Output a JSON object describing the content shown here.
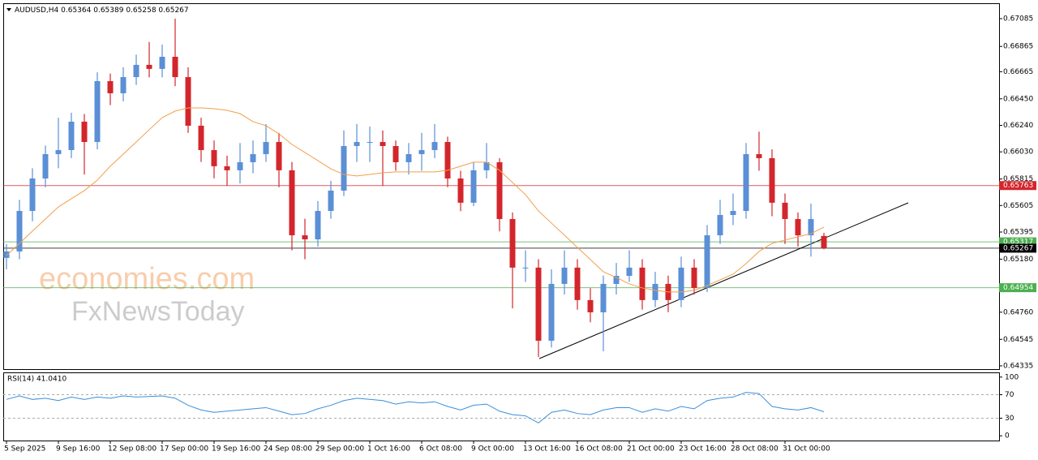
{
  "chart_data": {
    "type": "candlestick",
    "symbol": "AUDUSD,H4",
    "up_color": "#5b8fd6",
    "down_color": "#d3262c",
    "categories": [
      "5 Sep 2025",
      null,
      null,
      null,
      "9 Sep 16:00",
      null,
      null,
      null,
      "12 Sep 08:00",
      null,
      null,
      null,
      "17 Sep 00:00",
      null,
      null,
      null,
      "19 Sep 16:00",
      null,
      null,
      null,
      "24 Sep 08:00",
      null,
      null,
      null,
      "29 Sep 00:00",
      null,
      null,
      null,
      "1 Oct 16:00",
      null,
      null,
      null,
      "6 Oct 08:00",
      null,
      null,
      null,
      "9 Oct 00:00",
      null,
      null,
      null,
      "13 Oct 16:00",
      null,
      null,
      null,
      "16 Oct 08:00",
      null,
      null,
      null,
      "21 Oct 00:00",
      null,
      null,
      null,
      "23 Oct 16:00",
      null,
      null,
      null,
      "28 Oct 08:00",
      null,
      null,
      null,
      "31 Oct 00:00",
      null,
      null,
      null
    ],
    "open": [
      0.6519,
      0.65241,
      0.65562,
      0.65819,
      0.66012,
      0.66044,
      0.66269,
      0.66108,
      0.6659,
      0.66494,
      0.66622,
      0.66719,
      0.66687,
      0.66783,
      0.66622,
      0.66237,
      0.66044,
      0.65916,
      0.65884,
      0.65948,
      0.66012,
      0.66108,
      0.65884,
      0.65369,
      0.65337,
      0.65562,
      0.65723,
      0.66076,
      0.66108,
      0.66108,
      0.66076,
      0.65948,
      0.66012,
      0.66044,
      0.66108,
      0.65819,
      0.65627,
      0.65884,
      0.65948,
      0.65498,
      0.65113,
      0.65113,
      0.64534,
      0.64984,
      0.65113,
      0.64856,
      0.64759,
      0.64984,
      0.65048,
      0.65113,
      0.64856,
      0.64984,
      0.64856,
      0.65113,
      0.64952,
      0.65369,
      0.6553,
      0.65562,
      0.66012,
      0.6598,
      0.65627,
      0.65498,
      0.65369,
      0.65364
    ],
    "high": [
      0.653,
      0.6565,
      0.659,
      0.6608,
      0.663,
      0.6634,
      0.6633,
      0.6666,
      0.6665,
      0.667,
      0.668,
      0.669,
      0.6688,
      0.67085,
      0.667,
      0.663,
      0.6612,
      0.66,
      0.661,
      0.6612,
      0.6625,
      0.6618,
      0.6595,
      0.655,
      0.6564,
      0.658,
      0.662,
      0.6625,
      0.6623,
      0.662,
      0.6612,
      0.661,
      0.6618,
      0.6625,
      0.6615,
      0.6588,
      0.6595,
      0.661,
      0.6598,
      0.6555,
      0.6525,
      0.6518,
      0.651,
      0.6525,
      0.6518,
      0.6495,
      0.6505,
      0.6515,
      0.6525,
      0.6518,
      0.6508,
      0.6505,
      0.652,
      0.6518,
      0.6545,
      0.6565,
      0.657,
      0.661,
      0.6619,
      0.6605,
      0.657,
      0.6555,
      0.6562,
      0.65389
    ],
    "low": [
      0.651,
      0.6518,
      0.6548,
      0.6575,
      0.659,
      0.6598,
      0.6585,
      0.6605,
      0.664,
      0.6643,
      0.6656,
      0.6662,
      0.6662,
      0.6655,
      0.6618,
      0.6595,
      0.6582,
      0.6576,
      0.6578,
      0.6586,
      0.6595,
      0.6575,
      0.6525,
      0.6518,
      0.6528,
      0.655,
      0.6568,
      0.6595,
      0.6595,
      0.6576,
      0.6588,
      0.6585,
      0.6588,
      0.6598,
      0.6575,
      0.6556,
      0.656,
      0.6582,
      0.654,
      0.6479,
      0.65,
      0.64405,
      0.6448,
      0.649,
      0.6478,
      0.6468,
      0.6445,
      0.649,
      0.65,
      0.6478,
      0.648,
      0.6476,
      0.648,
      0.649,
      0.6492,
      0.653,
      0.6545,
      0.655,
      0.6588,
      0.6552,
      0.653,
      0.6528,
      0.652,
      0.65258
    ],
    "close": [
      0.65241,
      0.65562,
      0.65819,
      0.66012,
      0.66044,
      0.66269,
      0.66108,
      0.6659,
      0.66494,
      0.66622,
      0.66719,
      0.66687,
      0.66783,
      0.66622,
      0.66237,
      0.66044,
      0.65916,
      0.65884,
      0.65948,
      0.66012,
      0.66108,
      0.65884,
      0.65369,
      0.65337,
      0.65562,
      0.65723,
      0.66076,
      0.66108,
      0.66108,
      0.66076,
      0.65948,
      0.66012,
      0.66044,
      0.66108,
      0.65819,
      0.65627,
      0.65884,
      0.65948,
      0.65498,
      0.65113,
      0.65113,
      0.64534,
      0.64984,
      0.65113,
      0.64856,
      0.64759,
      0.64984,
      0.65048,
      0.65113,
      0.64856,
      0.64984,
      0.64856,
      0.65113,
      0.64952,
      0.65369,
      0.6553,
      0.65562,
      0.66012,
      0.6598,
      0.65627,
      0.65498,
      0.65369,
      0.65498,
      0.65267
    ],
    "ma": {
      "color": "#f0a04b",
      "values": [
        0.65209,
        0.65305,
        0.65402,
        0.65498,
        0.65594,
        0.65659,
        0.65723,
        0.65806,
        0.65916,
        0.66012,
        0.66108,
        0.66205,
        0.66301,
        0.66353,
        0.66378,
        0.66378,
        0.66372,
        0.66359,
        0.66333,
        0.66269,
        0.66237,
        0.66173,
        0.66089,
        0.66025,
        0.65961,
        0.65896,
        0.65851,
        0.65839,
        0.65851,
        0.65864,
        0.65871,
        0.65871,
        0.65871,
        0.65871,
        0.65884,
        0.65916,
        0.65948,
        0.65948,
        0.65884,
        0.65787,
        0.65691,
        0.65562,
        0.65466,
        0.6537,
        0.65273,
        0.65177,
        0.6508,
        0.65035,
        0.64984,
        0.64952,
        0.64933,
        0.6492,
        0.6492,
        0.64933,
        0.64971,
        0.65016,
        0.65061,
        0.65145,
        0.65241,
        0.65305,
        0.65331,
        0.65357,
        0.65382,
        0.65434
      ]
    },
    "ylim": [
      0.64309,
      0.67207
    ],
    "yticks": [
      0.67085,
      0.66865,
      0.66665,
      {
        "value": 0.6645,
        "label": "0.66450"
      },
      {
        "value": 0.6624,
        "label": "0.66240"
      },
      {
        "value": 0.6603,
        "label": "0.66030"
      },
      0.65815,
      0.65605,
      0.65395,
      {
        "value": 0.6518,
        "label": "0.65180"
      },
      {
        "value": 0.6476,
        "label": "0.64760"
      },
      0.64545,
      0.64335
    ],
    "levels": [
      {
        "value": 0.65763,
        "color": "#d3262c"
      },
      {
        "value": 0.65317,
        "color": "#4caf50"
      },
      {
        "value": 0.65267,
        "color": "#000000"
      },
      {
        "value": 0.64954,
        "color": "#4caf50"
      }
    ],
    "rsi": {
      "label": "RSI(14) 41.0410",
      "color": "#3a8fd9",
      "ylim": [
        -8,
        108
      ],
      "yticks": [
        100,
        70,
        30,
        0
      ],
      "values": [
        62,
        68,
        62,
        64,
        60,
        66,
        62,
        66,
        64,
        68,
        66,
        67,
        68,
        64,
        52,
        44,
        40,
        42,
        44,
        46,
        48,
        42,
        36,
        38,
        46,
        52,
        60,
        64,
        62,
        60,
        54,
        58,
        56,
        58,
        50,
        44,
        52,
        54,
        42,
        36,
        34,
        22,
        40,
        44,
        38,
        36,
        44,
        48,
        48,
        40,
        46,
        42,
        50,
        46,
        60,
        64,
        66,
        74,
        72,
        50,
        46,
        44,
        48,
        41.041
      ]
    },
    "watermark": [
      "economies.com",
      "FxNewsToday"
    ]
  }
}
